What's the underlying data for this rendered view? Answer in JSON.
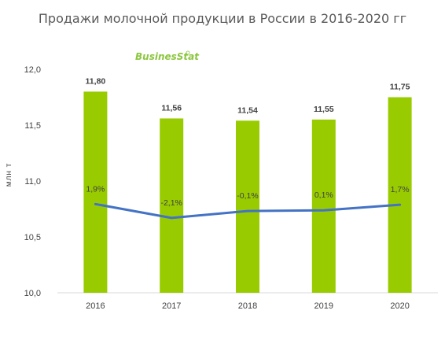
{
  "chart_data": {
    "type": "bar",
    "title": "Продажи молочной продукции в России в 2016-2020 гг",
    "ylabel": "млн т",
    "watermark": "BusinesStat",
    "categories": [
      "2016",
      "2017",
      "2018",
      "2019",
      "2020"
    ],
    "values": [
      11.8,
      11.56,
      11.54,
      11.55,
      11.75
    ],
    "value_labels": [
      "11,80",
      "11,56",
      "11,54",
      "11,55",
      "11,75"
    ],
    "ylim": [
      10.0,
      12.0
    ],
    "yticks": [
      "10,0",
      "10,5",
      "11,0",
      "11,5",
      "12,0"
    ],
    "grid": false,
    "bar_color": "#99cc00",
    "line_series": {
      "type": "line",
      "values_pct": [
        1.9,
        -2.1,
        -0.1,
        0.1,
        1.7
      ],
      "labels": [
        "1,9%",
        "-2,1%",
        "-0,1%",
        "0,1%",
        "1,7%"
      ],
      "color": "#4472c4"
    }
  }
}
